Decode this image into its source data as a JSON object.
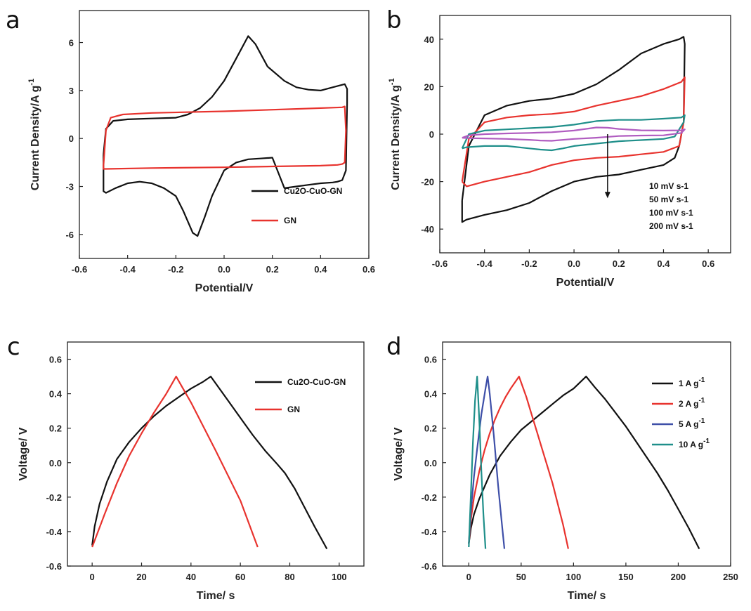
{
  "chart_data": [
    {
      "panel": "a",
      "type": "line",
      "xlabel": "Potential/V",
      "ylabel": "Current Density/A g",
      "ylabel_sup": "-1",
      "xlim": [
        -0.6,
        0.6
      ],
      "ylim": [
        -7.5,
        8.0
      ],
      "xticks": [
        "-0.6",
        "-0.4",
        "-0.2",
        "0.0",
        "0.2",
        "0.4",
        "0.6"
      ],
      "xtick_values": [
        -0.6,
        -0.4,
        -0.2,
        0.0,
        0.2,
        0.4,
        0.6
      ],
      "yticks": [
        "-6",
        "-3",
        "0",
        "3",
        "6"
      ],
      "ytick_values": [
        -6,
        -3,
        0,
        3,
        6
      ],
      "legend_position": "lower-right",
      "series": [
        {
          "name": "Cu2O-CuO-GN",
          "color": "#111111",
          "x": [
            -0.5,
            -0.49,
            -0.46,
            -0.4,
            -0.3,
            -0.2,
            -0.15,
            -0.1,
            -0.05,
            0.0,
            0.05,
            0.1,
            0.13,
            0.18,
            0.25,
            0.3,
            0.35,
            0.4,
            0.45,
            0.5,
            0.51,
            0.51,
            0.505,
            0.49,
            0.47,
            0.45,
            0.4,
            0.35,
            0.3,
            0.25,
            0.2,
            0.15,
            0.1,
            0.05,
            0.0,
            -0.05,
            -0.08,
            -0.11,
            -0.13,
            -0.17,
            -0.2,
            -0.25,
            -0.3,
            -0.35,
            -0.4,
            -0.45,
            -0.49,
            -0.5,
            -0.5
          ],
          "y": [
            -1.0,
            0.6,
            1.1,
            1.2,
            1.25,
            1.3,
            1.5,
            1.9,
            2.6,
            3.6,
            5.0,
            6.4,
            5.9,
            4.5,
            3.6,
            3.2,
            3.05,
            3.0,
            3.2,
            3.4,
            3.1,
            2.2,
            -2.0,
            -2.6,
            -2.7,
            -2.75,
            -2.8,
            -2.9,
            -3.0,
            -3.1,
            -1.2,
            -1.25,
            -1.3,
            -1.5,
            -2.0,
            -3.6,
            -4.9,
            -6.1,
            -5.9,
            -4.5,
            -3.6,
            -3.1,
            -2.8,
            -2.7,
            -2.8,
            -3.1,
            -3.4,
            -3.3,
            -1.0
          ]
        },
        {
          "name": "GN",
          "color": "#e8332e",
          "x": [
            -0.5,
            -0.49,
            -0.47,
            -0.42,
            -0.3,
            0.0,
            0.3,
            0.49,
            0.5,
            0.505,
            0.5,
            0.49,
            0.47,
            0.4,
            0.2,
            0.0,
            -0.3,
            -0.49,
            -0.5,
            -0.5
          ],
          "y": [
            -1.7,
            0.5,
            1.3,
            1.5,
            1.6,
            1.7,
            1.85,
            1.95,
            2.0,
            0.5,
            -1.5,
            -1.6,
            -1.65,
            -1.7,
            -1.75,
            -1.8,
            -1.85,
            -1.9,
            -1.9,
            -1.7
          ]
        }
      ]
    },
    {
      "panel": "b",
      "type": "line",
      "xlabel": "Potential/V",
      "ylabel": "Current Density/A g",
      "ylabel_sup": "-1",
      "xlim": [
        -0.6,
        0.7
      ],
      "ylim": [
        -50,
        50
      ],
      "xticks": [
        "-0.6",
        "-0.4",
        "-0.2",
        "0.0",
        "0.2",
        "0.4",
        "0.6"
      ],
      "xtick_values": [
        -0.6,
        -0.4,
        -0.2,
        0.0,
        0.2,
        0.4,
        0.6
      ],
      "yticks": [
        "-40",
        "-20",
        "0",
        "20",
        "40"
      ],
      "ytick_values": [
        -40,
        -20,
        0,
        20,
        40
      ],
      "annotation_arrow": {
        "x": 0.15,
        "y_from": 0,
        "y_to": -27
      },
      "legend_entries": [
        "10  mV s-1",
        "50  mV s-1",
        "100  mV s-1",
        "200  mV s-1"
      ],
      "series": [
        {
          "name": "200 mV s-1",
          "color": "#111111",
          "x": [
            -0.5,
            -0.47,
            -0.4,
            -0.3,
            -0.2,
            -0.1,
            0.0,
            0.1,
            0.2,
            0.3,
            0.4,
            0.47,
            0.49,
            0.495,
            0.49,
            0.47,
            0.45,
            0.4,
            0.3,
            0.2,
            0.1,
            0.0,
            -0.1,
            -0.2,
            -0.3,
            -0.4,
            -0.48,
            -0.5,
            -0.5
          ],
          "y": [
            -28,
            -5,
            8,
            12,
            14,
            15,
            17,
            21,
            27,
            34,
            38,
            40,
            41,
            38,
            5,
            -5,
            -10,
            -13,
            -15,
            -17,
            -18,
            -20,
            -24,
            -29,
            -32,
            -34,
            -36,
            -37,
            -28
          ]
        },
        {
          "name": "100 mV s-1",
          "color": "#e8332e",
          "x": [
            -0.5,
            -0.47,
            -0.4,
            -0.3,
            -0.2,
            -0.1,
            0.0,
            0.1,
            0.2,
            0.3,
            0.4,
            0.48,
            0.495,
            0.49,
            0.47,
            0.4,
            0.3,
            0.2,
            0.1,
            0.0,
            -0.1,
            -0.2,
            -0.3,
            -0.4,
            -0.48,
            -0.5
          ],
          "y": [
            -20,
            -2,
            5,
            7,
            8,
            8.5,
            9.5,
            12,
            14,
            16,
            19,
            22,
            24,
            5,
            -5,
            -7.5,
            -8.5,
            -9.5,
            -10,
            -11,
            -13,
            -16,
            -18,
            -20,
            -22,
            -20
          ]
        },
        {
          "name": "50 mV s-1",
          "color": "#1f8f8a",
          "x": [
            -0.5,
            -0.47,
            -0.4,
            -0.3,
            -0.2,
            -0.1,
            0.0,
            0.1,
            0.2,
            0.3,
            0.4,
            0.48,
            0.495,
            0.49,
            0.45,
            0.4,
            0.3,
            0.2,
            0.1,
            0.0,
            -0.05,
            -0.1,
            -0.15,
            -0.2,
            -0.3,
            -0.4,
            -0.48,
            -0.5
          ],
          "y": [
            -6,
            0,
            1.5,
            2,
            2.5,
            3,
            4,
            5.5,
            6,
            6,
            6.5,
            7,
            8,
            5,
            -1,
            -2,
            -2.5,
            -3,
            -4,
            -5,
            -6,
            -6.8,
            -6.5,
            -6,
            -5,
            -5,
            -5.5,
            -6
          ]
        },
        {
          "name": "10 mV s-1",
          "color": "#b05cc0",
          "x": [
            -0.5,
            -0.47,
            -0.4,
            -0.3,
            -0.2,
            -0.1,
            0.0,
            0.1,
            0.15,
            0.2,
            0.3,
            0.4,
            0.48,
            0.495,
            0.48,
            0.4,
            0.3,
            0.2,
            0.1,
            0.0,
            -0.1,
            -0.15,
            -0.2,
            -0.3,
            -0.4,
            -0.48,
            -0.5
          ],
          "y": [
            -1.5,
            -0.5,
            0,
            0.3,
            0.5,
            0.8,
            1.5,
            2.8,
            2.7,
            2.2,
            1.6,
            1.5,
            1.6,
            2.0,
            0.5,
            -0.5,
            -0.6,
            -0.8,
            -1.5,
            -2.0,
            -2.8,
            -2.7,
            -2.4,
            -2.0,
            -1.8,
            -1.7,
            -1.5
          ]
        }
      ]
    },
    {
      "panel": "c",
      "type": "line",
      "xlabel": "Time/ s",
      "ylabel": "Voltage/ V",
      "xlim": [
        -10,
        110
      ],
      "ylim": [
        -0.6,
        0.7
      ],
      "xticks": [
        "0",
        "20",
        "40",
        "60",
        "80",
        "100"
      ],
      "xtick_values": [
        0,
        20,
        40,
        60,
        80,
        100
      ],
      "yticks": [
        "-0.6",
        "-0.4",
        "-0.2",
        "0.0",
        "0.2",
        "0.4",
        "0.6"
      ],
      "ytick_values": [
        -0.6,
        -0.4,
        -0.2,
        0.0,
        0.2,
        0.4,
        0.6
      ],
      "legend_position": "top-right",
      "series": [
        {
          "name": "Cu2O-CuO-GN",
          "color": "#111111",
          "x": [
            0,
            1,
            3,
            6,
            10,
            15,
            20,
            25,
            30,
            35,
            40,
            45,
            48,
            50,
            55,
            60,
            65,
            70,
            75,
            78,
            82,
            86,
            90,
            95
          ],
          "y": [
            -0.48,
            -0.37,
            -0.24,
            -0.11,
            0.02,
            0.12,
            0.2,
            0.27,
            0.33,
            0.38,
            0.43,
            0.47,
            0.5,
            0.46,
            0.36,
            0.26,
            0.16,
            0.07,
            -0.01,
            -0.06,
            -0.15,
            -0.26,
            -0.37,
            -0.5
          ]
        },
        {
          "name": "GN",
          "color": "#e8332e",
          "x": [
            0,
            5,
            10,
            15,
            20,
            25,
            30,
            34,
            40,
            50,
            60,
            67
          ],
          "y": [
            -0.49,
            -0.3,
            -0.12,
            0.04,
            0.17,
            0.29,
            0.4,
            0.5,
            0.35,
            0.07,
            -0.22,
            -0.49
          ]
        }
      ]
    },
    {
      "panel": "d",
      "type": "line",
      "xlabel": "Time/ s",
      "ylabel": "Voltage/ V",
      "xlim": [
        -25,
        250
      ],
      "ylim": [
        -0.6,
        0.7
      ],
      "xticks": [
        "0",
        "50",
        "100",
        "150",
        "200",
        "250"
      ],
      "xtick_values": [
        0,
        50,
        100,
        150,
        200,
        250
      ],
      "yticks": [
        "-0.6",
        "-0.4",
        "-0.2",
        "0.0",
        "0.2",
        "0.4",
        "0.6"
      ],
      "ytick_values": [
        -0.6,
        -0.4,
        -0.2,
        0.0,
        0.2,
        0.4,
        0.6
      ],
      "legend_position": "top-right",
      "legend_labels": [
        "1 A g",
        "2 A g",
        "5 A g",
        "10 A g"
      ],
      "legend_sup": "-1",
      "series": [
        {
          "name": "1 A g-1",
          "color": "#111111",
          "x": [
            0,
            2,
            5,
            10,
            20,
            30,
            40,
            50,
            60,
            70,
            80,
            90,
            100,
            112,
            120,
            130,
            140,
            150,
            160,
            170,
            180,
            190,
            200,
            210,
            220
          ],
          "y": [
            -0.47,
            -0.38,
            -0.3,
            -0.21,
            -0.07,
            0.04,
            0.12,
            0.19,
            0.24,
            0.29,
            0.34,
            0.39,
            0.43,
            0.5,
            0.44,
            0.37,
            0.29,
            0.21,
            0.12,
            0.03,
            -0.06,
            -0.16,
            -0.27,
            -0.38,
            -0.5
          ]
        },
        {
          "name": "2 A g-1",
          "color": "#e8332e",
          "x": [
            0,
            2,
            5,
            10,
            15,
            20,
            25,
            30,
            35,
            40,
            48,
            55,
            60,
            65,
            70,
            75,
            80,
            85,
            90,
            95
          ],
          "y": [
            -0.47,
            -0.33,
            -0.2,
            -0.05,
            0.07,
            0.17,
            0.25,
            0.32,
            0.38,
            0.43,
            0.5,
            0.38,
            0.28,
            0.18,
            0.08,
            -0.02,
            -0.12,
            -0.24,
            -0.36,
            -0.5
          ]
        },
        {
          "name": "5 A g-1",
          "color": "#3e4fa8",
          "x": [
            0,
            2,
            5,
            8,
            12,
            16,
            18,
            20,
            24,
            28,
            32,
            34
          ],
          "y": [
            -0.47,
            -0.28,
            -0.08,
            0.08,
            0.28,
            0.43,
            0.5,
            0.4,
            0.15,
            -0.13,
            -0.38,
            -0.5
          ]
        },
        {
          "name": "10 A g-1",
          "color": "#1f8f8a",
          "x": [
            0,
            2,
            4,
            6,
            8,
            10,
            12,
            14,
            16
          ],
          "y": [
            -0.49,
            -0.18,
            0.12,
            0.36,
            0.5,
            0.25,
            -0.05,
            -0.3,
            -0.5
          ]
        }
      ]
    }
  ]
}
